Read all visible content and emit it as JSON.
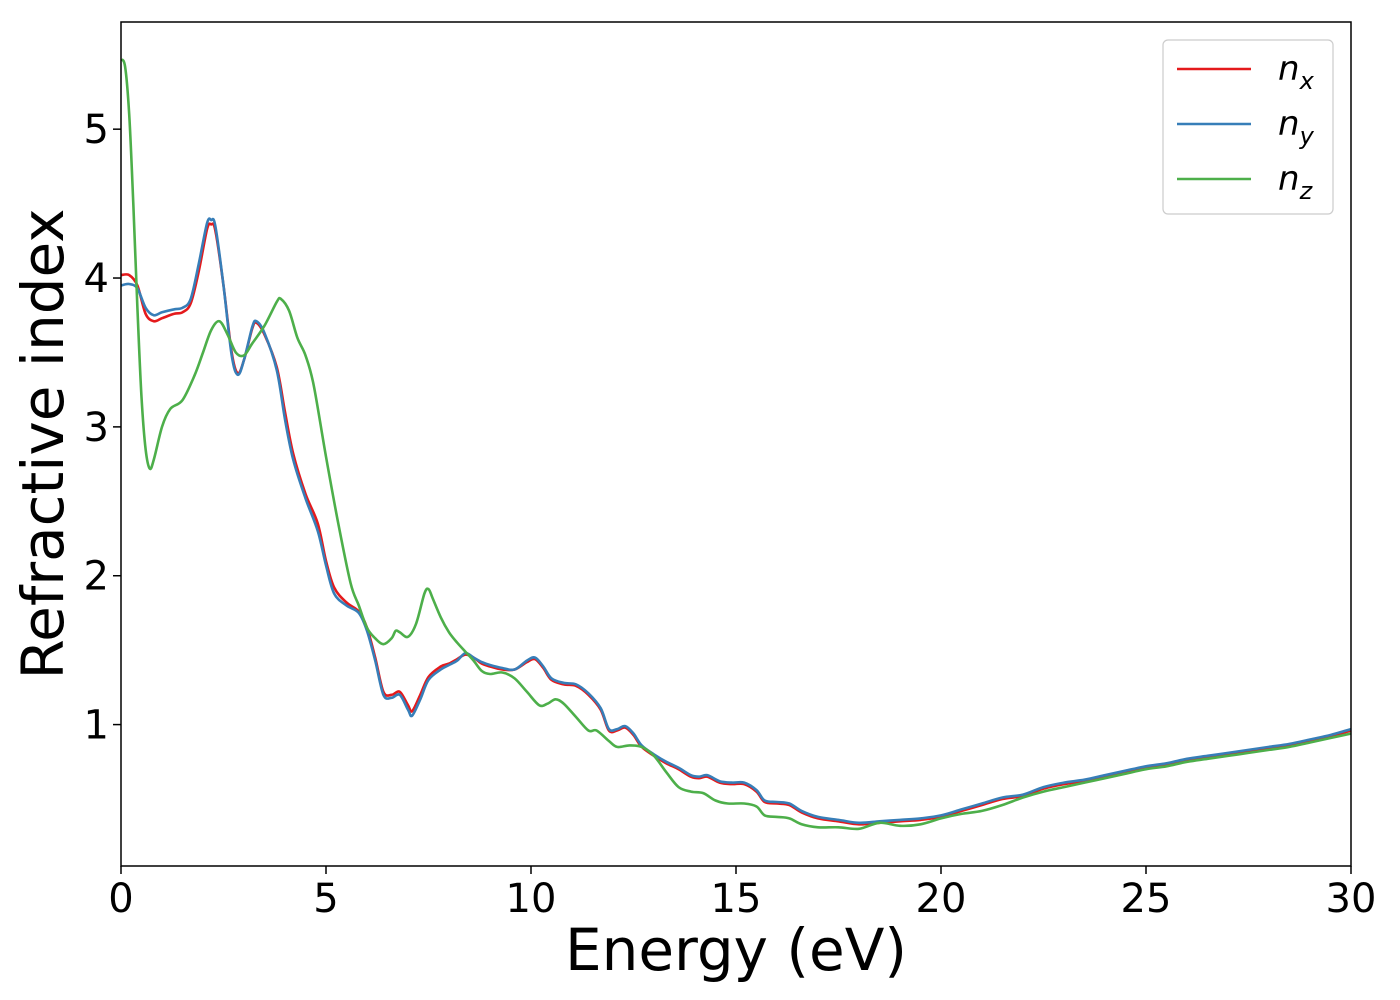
{
  "chart_data": {
    "type": "line",
    "title": "",
    "xlabel": "Energy (eV)",
    "ylabel": "Refractive index",
    "xlim": [
      0,
      30
    ],
    "ylim": [
      0.05,
      5.72
    ],
    "xticks": [
      0,
      5,
      10,
      15,
      20,
      25,
      30
    ],
    "yticks": [
      1,
      2,
      3,
      4,
      5
    ],
    "grid": false,
    "legend_position": "top-right",
    "series": [
      {
        "name": "n_x",
        "name_base": "n",
        "name_sub": "x",
        "color": "#e41a1c",
        "points": [
          [
            0,
            4.02
          ],
          [
            0.2,
            4.02
          ],
          [
            0.4,
            3.95
          ],
          [
            0.6,
            3.76
          ],
          [
            0.8,
            3.71
          ],
          [
            1.0,
            3.73
          ],
          [
            1.3,
            3.76
          ],
          [
            1.5,
            3.77
          ],
          [
            1.7,
            3.83
          ],
          [
            1.9,
            4.05
          ],
          [
            2.1,
            4.33
          ],
          [
            2.2,
            4.36
          ],
          [
            2.3,
            4.32
          ],
          [
            2.5,
            3.95
          ],
          [
            2.7,
            3.5
          ],
          [
            2.85,
            3.36
          ],
          [
            3.0,
            3.45
          ],
          [
            3.2,
            3.66
          ],
          [
            3.3,
            3.7
          ],
          [
            3.5,
            3.62
          ],
          [
            3.8,
            3.4
          ],
          [
            4.0,
            3.1
          ],
          [
            4.2,
            2.82
          ],
          [
            4.5,
            2.55
          ],
          [
            4.8,
            2.35
          ],
          [
            5.0,
            2.1
          ],
          [
            5.2,
            1.92
          ],
          [
            5.5,
            1.82
          ],
          [
            5.8,
            1.76
          ],
          [
            6.0,
            1.65
          ],
          [
            6.2,
            1.45
          ],
          [
            6.4,
            1.22
          ],
          [
            6.6,
            1.2
          ],
          [
            6.8,
            1.22
          ],
          [
            7.0,
            1.13
          ],
          [
            7.1,
            1.09
          ],
          [
            7.3,
            1.2
          ],
          [
            7.5,
            1.32
          ],
          [
            7.8,
            1.39
          ],
          [
            8.0,
            1.41
          ],
          [
            8.2,
            1.44
          ],
          [
            8.4,
            1.47
          ],
          [
            8.6,
            1.45
          ],
          [
            8.8,
            1.41
          ],
          [
            9.0,
            1.39
          ],
          [
            9.3,
            1.37
          ],
          [
            9.6,
            1.37
          ],
          [
            9.9,
            1.42
          ],
          [
            10.1,
            1.44
          ],
          [
            10.3,
            1.38
          ],
          [
            10.5,
            1.3
          ],
          [
            10.8,
            1.27
          ],
          [
            11.1,
            1.26
          ],
          [
            11.4,
            1.2
          ],
          [
            11.7,
            1.1
          ],
          [
            11.9,
            0.96
          ],
          [
            12.1,
            0.96
          ],
          [
            12.3,
            0.98
          ],
          [
            12.5,
            0.93
          ],
          [
            12.7,
            0.85
          ],
          [
            13.0,
            0.79
          ],
          [
            13.3,
            0.74
          ],
          [
            13.6,
            0.7
          ],
          [
            13.9,
            0.65
          ],
          [
            14.1,
            0.64
          ],
          [
            14.3,
            0.65
          ],
          [
            14.6,
            0.61
          ],
          [
            14.9,
            0.6
          ],
          [
            15.2,
            0.6
          ],
          [
            15.5,
            0.55
          ],
          [
            15.7,
            0.48
          ],
          [
            16.0,
            0.47
          ],
          [
            16.3,
            0.46
          ],
          [
            16.6,
            0.41
          ],
          [
            17.0,
            0.37
          ],
          [
            17.5,
            0.35
          ],
          [
            18.0,
            0.33
          ],
          [
            18.5,
            0.34
          ],
          [
            19.0,
            0.35
          ],
          [
            19.5,
            0.36
          ],
          [
            20.0,
            0.38
          ],
          [
            20.5,
            0.42
          ],
          [
            21.0,
            0.46
          ],
          [
            21.5,
            0.5
          ],
          [
            22.0,
            0.52
          ],
          [
            22.5,
            0.57
          ],
          [
            23.0,
            0.6
          ],
          [
            23.5,
            0.62
          ],
          [
            24.0,
            0.65
          ],
          [
            24.5,
            0.68
          ],
          [
            25.0,
            0.71
          ],
          [
            25.5,
            0.73
          ],
          [
            26.0,
            0.76
          ],
          [
            26.5,
            0.78
          ],
          [
            27.0,
            0.8
          ],
          [
            27.5,
            0.82
          ],
          [
            28.0,
            0.84
          ],
          [
            28.5,
            0.86
          ],
          [
            29.0,
            0.89
          ],
          [
            29.5,
            0.92
          ],
          [
            30.0,
            0.96
          ]
        ]
      },
      {
        "name": "n_y",
        "name_base": "n",
        "name_sub": "y",
        "color": "#377eb8",
        "points": [
          [
            0,
            3.95
          ],
          [
            0.2,
            3.96
          ],
          [
            0.4,
            3.93
          ],
          [
            0.6,
            3.8
          ],
          [
            0.8,
            3.75
          ],
          [
            1.0,
            3.77
          ],
          [
            1.3,
            3.79
          ],
          [
            1.5,
            3.8
          ],
          [
            1.7,
            3.86
          ],
          [
            1.9,
            4.1
          ],
          [
            2.1,
            4.37
          ],
          [
            2.2,
            4.39
          ],
          [
            2.3,
            4.35
          ],
          [
            2.5,
            3.95
          ],
          [
            2.7,
            3.48
          ],
          [
            2.85,
            3.35
          ],
          [
            3.0,
            3.45
          ],
          [
            3.2,
            3.67
          ],
          [
            3.3,
            3.71
          ],
          [
            3.5,
            3.63
          ],
          [
            3.8,
            3.38
          ],
          [
            4.0,
            3.05
          ],
          [
            4.2,
            2.78
          ],
          [
            4.5,
            2.52
          ],
          [
            4.8,
            2.3
          ],
          [
            5.0,
            2.07
          ],
          [
            5.2,
            1.88
          ],
          [
            5.5,
            1.8
          ],
          [
            5.8,
            1.75
          ],
          [
            6.0,
            1.63
          ],
          [
            6.2,
            1.43
          ],
          [
            6.4,
            1.2
          ],
          [
            6.6,
            1.18
          ],
          [
            6.8,
            1.2
          ],
          [
            7.0,
            1.1
          ],
          [
            7.1,
            1.06
          ],
          [
            7.3,
            1.17
          ],
          [
            7.5,
            1.3
          ],
          [
            7.8,
            1.37
          ],
          [
            8.0,
            1.4
          ],
          [
            8.2,
            1.43
          ],
          [
            8.4,
            1.48
          ],
          [
            8.6,
            1.45
          ],
          [
            8.8,
            1.42
          ],
          [
            9.0,
            1.4
          ],
          [
            9.3,
            1.38
          ],
          [
            9.6,
            1.37
          ],
          [
            9.9,
            1.43
          ],
          [
            10.1,
            1.45
          ],
          [
            10.3,
            1.39
          ],
          [
            10.5,
            1.31
          ],
          [
            10.8,
            1.28
          ],
          [
            11.1,
            1.27
          ],
          [
            11.4,
            1.21
          ],
          [
            11.7,
            1.11
          ],
          [
            11.9,
            0.97
          ],
          [
            12.1,
            0.97
          ],
          [
            12.3,
            0.99
          ],
          [
            12.5,
            0.94
          ],
          [
            12.7,
            0.86
          ],
          [
            13.0,
            0.8
          ],
          [
            13.3,
            0.75
          ],
          [
            13.6,
            0.71
          ],
          [
            13.9,
            0.66
          ],
          [
            14.1,
            0.65
          ],
          [
            14.3,
            0.66
          ],
          [
            14.6,
            0.62
          ],
          [
            14.9,
            0.61
          ],
          [
            15.2,
            0.61
          ],
          [
            15.5,
            0.56
          ],
          [
            15.7,
            0.49
          ],
          [
            16.0,
            0.48
          ],
          [
            16.3,
            0.47
          ],
          [
            16.6,
            0.42
          ],
          [
            17.0,
            0.38
          ],
          [
            17.5,
            0.36
          ],
          [
            18.0,
            0.34
          ],
          [
            18.5,
            0.35
          ],
          [
            19.0,
            0.36
          ],
          [
            19.5,
            0.37
          ],
          [
            20.0,
            0.39
          ],
          [
            20.5,
            0.43
          ],
          [
            21.0,
            0.47
          ],
          [
            21.5,
            0.51
          ],
          [
            22.0,
            0.53
          ],
          [
            22.5,
            0.58
          ],
          [
            23.0,
            0.61
          ],
          [
            23.5,
            0.63
          ],
          [
            24.0,
            0.66
          ],
          [
            24.5,
            0.69
          ],
          [
            25.0,
            0.72
          ],
          [
            25.5,
            0.74
          ],
          [
            26.0,
            0.77
          ],
          [
            26.5,
            0.79
          ],
          [
            27.0,
            0.81
          ],
          [
            27.5,
            0.83
          ],
          [
            28.0,
            0.85
          ],
          [
            28.5,
            0.87
          ],
          [
            29.0,
            0.9
          ],
          [
            29.5,
            0.93
          ],
          [
            30.0,
            0.97
          ]
        ]
      },
      {
        "name": "n_z",
        "name_base": "n",
        "name_sub": "z",
        "color": "#4daf4a",
        "points": [
          [
            0,
            5.47
          ],
          [
            0.1,
            5.42
          ],
          [
            0.2,
            5.1
          ],
          [
            0.3,
            4.5
          ],
          [
            0.4,
            3.8
          ],
          [
            0.5,
            3.2
          ],
          [
            0.6,
            2.85
          ],
          [
            0.7,
            2.72
          ],
          [
            0.8,
            2.78
          ],
          [
            1.0,
            3.0
          ],
          [
            1.2,
            3.12
          ],
          [
            1.5,
            3.18
          ],
          [
            1.8,
            3.35
          ],
          [
            2.0,
            3.5
          ],
          [
            2.2,
            3.65
          ],
          [
            2.4,
            3.71
          ],
          [
            2.6,
            3.62
          ],
          [
            2.8,
            3.5
          ],
          [
            3.0,
            3.48
          ],
          [
            3.2,
            3.56
          ],
          [
            3.5,
            3.68
          ],
          [
            3.8,
            3.84
          ],
          [
            3.9,
            3.86
          ],
          [
            4.1,
            3.78
          ],
          [
            4.3,
            3.6
          ],
          [
            4.5,
            3.48
          ],
          [
            4.7,
            3.28
          ],
          [
            5.0,
            2.8
          ],
          [
            5.3,
            2.35
          ],
          [
            5.6,
            1.95
          ],
          [
            5.8,
            1.8
          ],
          [
            6.0,
            1.65
          ],
          [
            6.2,
            1.58
          ],
          [
            6.4,
            1.54
          ],
          [
            6.6,
            1.58
          ],
          [
            6.7,
            1.63
          ],
          [
            6.8,
            1.62
          ],
          [
            7.0,
            1.59
          ],
          [
            7.2,
            1.68
          ],
          [
            7.4,
            1.88
          ],
          [
            7.5,
            1.91
          ],
          [
            7.6,
            1.85
          ],
          [
            7.8,
            1.72
          ],
          [
            8.0,
            1.62
          ],
          [
            8.2,
            1.55
          ],
          [
            8.4,
            1.49
          ],
          [
            8.6,
            1.43
          ],
          [
            8.8,
            1.36
          ],
          [
            9.0,
            1.34
          ],
          [
            9.3,
            1.35
          ],
          [
            9.6,
            1.31
          ],
          [
            9.9,
            1.22
          ],
          [
            10.2,
            1.13
          ],
          [
            10.4,
            1.14
          ],
          [
            10.6,
            1.17
          ],
          [
            10.8,
            1.14
          ],
          [
            11.1,
            1.05
          ],
          [
            11.4,
            0.96
          ],
          [
            11.6,
            0.96
          ],
          [
            11.9,
            0.89
          ],
          [
            12.1,
            0.85
          ],
          [
            12.4,
            0.86
          ],
          [
            12.7,
            0.85
          ],
          [
            13.0,
            0.79
          ],
          [
            13.3,
            0.68
          ],
          [
            13.6,
            0.58
          ],
          [
            13.9,
            0.55
          ],
          [
            14.2,
            0.54
          ],
          [
            14.5,
            0.49
          ],
          [
            14.8,
            0.47
          ],
          [
            15.2,
            0.47
          ],
          [
            15.5,
            0.45
          ],
          [
            15.7,
            0.39
          ],
          [
            16.0,
            0.38
          ],
          [
            16.3,
            0.37
          ],
          [
            16.6,
            0.33
          ],
          [
            17.0,
            0.31
          ],
          [
            17.5,
            0.31
          ],
          [
            18.0,
            0.3
          ],
          [
            18.5,
            0.34
          ],
          [
            19.0,
            0.32
          ],
          [
            19.5,
            0.33
          ],
          [
            20.0,
            0.37
          ],
          [
            20.5,
            0.4
          ],
          [
            21.0,
            0.42
          ],
          [
            21.5,
            0.46
          ],
          [
            22.0,
            0.51
          ],
          [
            22.5,
            0.55
          ],
          [
            23.0,
            0.58
          ],
          [
            23.5,
            0.61
          ],
          [
            24.0,
            0.64
          ],
          [
            24.5,
            0.67
          ],
          [
            25.0,
            0.7
          ],
          [
            25.5,
            0.72
          ],
          [
            26.0,
            0.75
          ],
          [
            26.5,
            0.77
          ],
          [
            27.0,
            0.79
          ],
          [
            27.5,
            0.81
          ],
          [
            28.0,
            0.83
          ],
          [
            28.5,
            0.85
          ],
          [
            29.0,
            0.88
          ],
          [
            29.5,
            0.91
          ],
          [
            30.0,
            0.94
          ]
        ]
      }
    ]
  }
}
